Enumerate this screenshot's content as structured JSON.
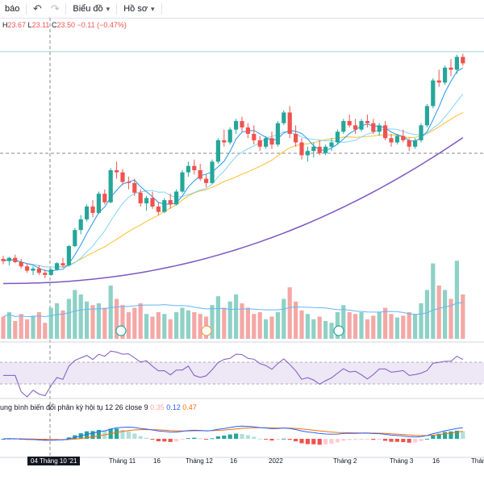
{
  "toolbar": {
    "partial_label": "báo",
    "undo_icon": "undo-icon",
    "redo_icon": "redo-icon",
    "chart_menu_label": "Biểu đồ",
    "profile_menu_label": "Hồ sơ",
    "chevron": "▾"
  },
  "ohlc": {
    "h_key": "H",
    "h_val": "23.67",
    "l_key": "L",
    "l_val": "23.11",
    "c_key": "C",
    "c_val": "23.50",
    "change": "−0.11 (−0.47%)"
  },
  "macd": {
    "label": "ung bình biến đổi phân kỳ hội tụ 12 26 close 9",
    "hist_val": "0.35",
    "macd_val": "0.12",
    "signal_val": "0.47"
  },
  "x_axis": {
    "crosshair_label": "04 Tháng 10 '21",
    "ticks": [
      {
        "label": "Tháng 11",
        "x": 135
      },
      {
        "label": "16",
        "x": 190
      },
      {
        "label": "Tháng 12",
        "x": 230
      },
      {
        "label": "16",
        "x": 285
      },
      {
        "label": "2022",
        "x": 333
      },
      {
        "label": "Tháng 2",
        "x": 413
      },
      {
        "label": "Tháng 3",
        "x": 483
      },
      {
        "label": "16",
        "x": 536
      },
      {
        "label": "Tháng",
        "x": 584
      }
    ]
  },
  "colors": {
    "up": "#26a69a",
    "down": "#ef5350",
    "up_vol": "#8ed1c6",
    "down_vol": "#f4a8a6",
    "ma_fast": "#2196f3",
    "ma_mid": "#81d4fa",
    "ma_slow": "#fbc02d",
    "ma_long": "#7e57c2",
    "rsi": "#7e57c2",
    "rsi_band": "#ede7f6",
    "macd_line": "#2962ff",
    "signal_line": "#ff6d00"
  },
  "chart_data": {
    "type": "candlestick",
    "ohlc": [
      [
        18.35,
        18.5,
        18.1,
        18.25
      ],
      [
        18.25,
        18.45,
        18.05,
        18.4
      ],
      [
        18.4,
        18.55,
        18.15,
        18.2
      ],
      [
        18.2,
        18.35,
        17.9,
        18.0
      ],
      [
        18.0,
        18.15,
        17.7,
        17.8
      ],
      [
        17.8,
        18.0,
        17.6,
        17.9
      ],
      [
        17.9,
        18.05,
        17.6,
        17.7
      ],
      [
        17.7,
        17.85,
        17.45,
        17.6
      ],
      [
        17.6,
        17.9,
        17.55,
        17.85
      ],
      [
        17.85,
        18.2,
        17.8,
        18.15
      ],
      [
        18.15,
        18.4,
        17.95,
        18.05
      ],
      [
        18.05,
        19.0,
        18.0,
        18.95
      ],
      [
        18.95,
        19.8,
        18.9,
        19.7
      ],
      [
        19.7,
        20.4,
        19.5,
        20.2
      ],
      [
        20.2,
        20.9,
        20.1,
        20.8
      ],
      [
        20.8,
        21.1,
        20.3,
        20.5
      ],
      [
        20.5,
        21.5,
        20.45,
        21.4
      ],
      [
        21.4,
        21.6,
        20.9,
        21.0
      ],
      [
        21.0,
        22.6,
        20.95,
        22.5
      ],
      [
        22.5,
        22.9,
        22.1,
        22.4
      ],
      [
        22.4,
        22.55,
        21.8,
        21.95
      ],
      [
        21.95,
        22.2,
        21.6,
        21.9
      ],
      [
        21.9,
        22.1,
        21.3,
        21.45
      ],
      [
        21.45,
        21.6,
        20.8,
        20.95
      ],
      [
        20.95,
        21.3,
        20.6,
        21.2
      ],
      [
        21.2,
        21.5,
        20.7,
        20.8
      ],
      [
        20.8,
        21.0,
        20.4,
        20.55
      ],
      [
        20.55,
        21.2,
        20.5,
        21.1
      ],
      [
        21.1,
        21.4,
        20.7,
        20.9
      ],
      [
        20.9,
        21.6,
        20.85,
        21.5
      ],
      [
        21.5,
        22.5,
        21.45,
        22.4
      ],
      [
        22.4,
        22.9,
        22.2,
        22.7
      ],
      [
        22.7,
        23.0,
        22.3,
        22.5
      ],
      [
        22.5,
        22.8,
        22.0,
        22.1
      ],
      [
        22.1,
        22.3,
        21.7,
        21.9
      ],
      [
        21.9,
        23.0,
        21.85,
        22.9
      ],
      [
        22.9,
        24.0,
        22.8,
        23.9
      ],
      [
        23.9,
        24.4,
        23.6,
        23.8
      ],
      [
        23.8,
        24.5,
        23.7,
        24.4
      ],
      [
        24.4,
        24.9,
        24.2,
        24.8
      ],
      [
        24.8,
        25.0,
        24.3,
        24.5
      ],
      [
        24.5,
        24.7,
        24.0,
        24.2
      ],
      [
        24.2,
        24.6,
        23.7,
        23.9
      ],
      [
        23.9,
        24.1,
        23.4,
        23.6
      ],
      [
        23.6,
        24.1,
        23.5,
        24.0
      ],
      [
        24.0,
        24.3,
        23.5,
        23.7
      ],
      [
        23.7,
        24.8,
        23.6,
        24.7
      ],
      [
        24.7,
        25.3,
        24.6,
        25.2
      ],
      [
        25.2,
        25.5,
        24.0,
        24.2
      ],
      [
        24.2,
        24.6,
        23.6,
        23.8
      ],
      [
        23.8,
        24.0,
        23.0,
        23.2
      ],
      [
        23.2,
        23.6,
        22.9,
        23.4
      ],
      [
        23.4,
        23.8,
        23.1,
        23.6
      ],
      [
        23.6,
        23.9,
        23.2,
        23.3
      ],
      [
        23.3,
        23.7,
        23.2,
        23.6
      ],
      [
        23.6,
        24.0,
        23.4,
        23.8
      ],
      [
        23.8,
        24.4,
        23.7,
        24.3
      ],
      [
        24.3,
        24.9,
        24.2,
        24.8
      ],
      [
        24.8,
        25.1,
        24.5,
        24.6
      ],
      [
        24.6,
        24.9,
        24.2,
        24.4
      ],
      [
        24.4,
        24.9,
        24.3,
        24.8
      ],
      [
        24.8,
        25.1,
        24.5,
        24.7
      ],
      [
        24.7,
        24.9,
        24.2,
        24.3
      ],
      [
        24.3,
        24.7,
        24.1,
        24.6
      ],
      [
        24.6,
        24.8,
        23.9,
        24.0
      ],
      [
        24.0,
        24.2,
        23.6,
        23.8
      ],
      [
        23.8,
        24.2,
        23.7,
        24.1
      ],
      [
        24.1,
        24.4,
        23.8,
        23.9
      ],
      [
        23.9,
        24.0,
        23.4,
        23.6
      ],
      [
        23.6,
        24.0,
        23.5,
        23.9
      ],
      [
        23.9,
        24.7,
        23.8,
        24.6
      ],
      [
        24.6,
        25.6,
        24.5,
        25.5
      ],
      [
        25.5,
        26.8,
        25.4,
        26.7
      ],
      [
        26.7,
        27.2,
        26.4,
        26.6
      ],
      [
        26.6,
        27.4,
        26.5,
        27.3
      ],
      [
        27.3,
        27.7,
        26.9,
        27.2
      ],
      [
        27.2,
        27.9,
        27.0,
        27.8
      ],
      [
        27.8,
        27.95,
        27.4,
        27.5
      ]
    ],
    "volume": [
      [
        0.25,
        0
      ],
      [
        0.3,
        1
      ],
      [
        0.2,
        0
      ],
      [
        0.28,
        0
      ],
      [
        0.22,
        0
      ],
      [
        0.26,
        1
      ],
      [
        0.3,
        0
      ],
      [
        0.18,
        0
      ],
      [
        0.35,
        1
      ],
      [
        0.4,
        1
      ],
      [
        0.32,
        0
      ],
      [
        0.45,
        1
      ],
      [
        0.55,
        1
      ],
      [
        0.5,
        1
      ],
      [
        0.42,
        1
      ],
      [
        0.38,
        0
      ],
      [
        0.4,
        1
      ],
      [
        0.35,
        0
      ],
      [
        0.6,
        1
      ],
      [
        0.45,
        0
      ],
      [
        0.38,
        0
      ],
      [
        0.3,
        0
      ],
      [
        0.35,
        0
      ],
      [
        0.4,
        0
      ],
      [
        0.28,
        1
      ],
      [
        0.25,
        0
      ],
      [
        0.3,
        0
      ],
      [
        0.28,
        1
      ],
      [
        0.22,
        0
      ],
      [
        0.3,
        1
      ],
      [
        0.35,
        1
      ],
      [
        0.32,
        1
      ],
      [
        0.3,
        0
      ],
      [
        0.28,
        0
      ],
      [
        0.25,
        0
      ],
      [
        0.38,
        1
      ],
      [
        0.48,
        1
      ],
      [
        0.35,
        0
      ],
      [
        0.42,
        1
      ],
      [
        0.5,
        1
      ],
      [
        0.4,
        0
      ],
      [
        0.35,
        0
      ],
      [
        0.28,
        0
      ],
      [
        0.3,
        0
      ],
      [
        0.22,
        1
      ],
      [
        0.25,
        0
      ],
      [
        0.3,
        1
      ],
      [
        0.45,
        1
      ],
      [
        0.58,
        0
      ],
      [
        0.42,
        0
      ],
      [
        0.32,
        0
      ],
      [
        0.28,
        1
      ],
      [
        0.22,
        1
      ],
      [
        0.25,
        0
      ],
      [
        0.2,
        1
      ],
      [
        0.18,
        1
      ],
      [
        0.3,
        1
      ],
      [
        0.38,
        1
      ],
      [
        0.3,
        0
      ],
      [
        0.28,
        0
      ],
      [
        0.3,
        1
      ],
      [
        0.22,
        0
      ],
      [
        0.26,
        0
      ],
      [
        0.3,
        1
      ],
      [
        0.35,
        0
      ],
      [
        0.28,
        0
      ],
      [
        0.24,
        1
      ],
      [
        0.26,
        0
      ],
      [
        0.3,
        0
      ],
      [
        0.28,
        1
      ],
      [
        0.4,
        1
      ],
      [
        0.55,
        1
      ],
      [
        0.85,
        1
      ],
      [
        0.6,
        0
      ],
      [
        0.55,
        1
      ],
      [
        0.45,
        0
      ],
      [
        0.88,
        1
      ],
      [
        0.5,
        0
      ]
    ]
  }
}
